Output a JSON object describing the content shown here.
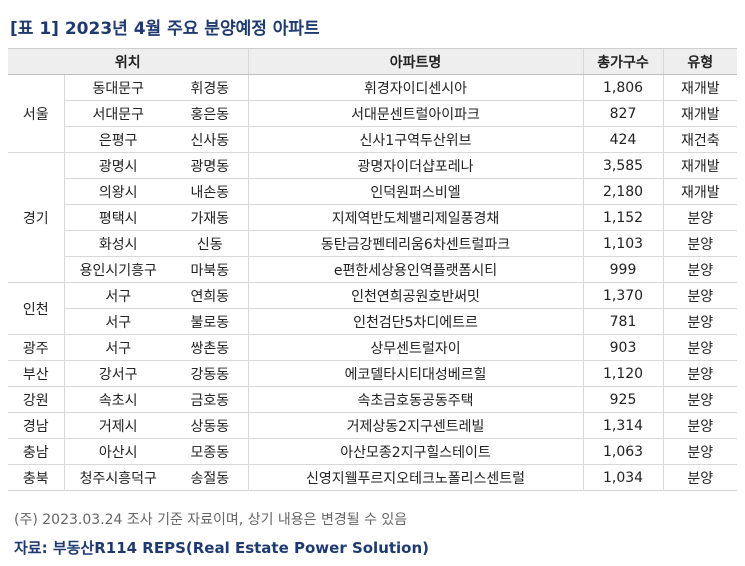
{
  "title": "[표 1] 2023년 4월 주요 분양예정 아파트",
  "headers": {
    "location": "위치",
    "apartment": "아파트명",
    "units": "총가구수",
    "type": "유형"
  },
  "groups": [
    {
      "region": "서울",
      "rows": [
        {
          "district": "동대문구",
          "dong": "휘경동",
          "name": "휘경자이디센시아",
          "units": "1,806",
          "type": "재개발"
        },
        {
          "district": "서대문구",
          "dong": "홍은동",
          "name": "서대문센트럴아이파크",
          "units": "827",
          "type": "재개발"
        },
        {
          "district": "은평구",
          "dong": "신사동",
          "name": "신사1구역두산위브",
          "units": "424",
          "type": "재건축"
        }
      ]
    },
    {
      "region": "경기",
      "rows": [
        {
          "district": "광명시",
          "dong": "광명동",
          "name": "광명자이더샵포레나",
          "units": "3,585",
          "type": "재개발"
        },
        {
          "district": "의왕시",
          "dong": "내손동",
          "name": "인덕원퍼스비엘",
          "units": "2,180",
          "type": "재개발"
        },
        {
          "district": "평택시",
          "dong": "가재동",
          "name": "지제역반도체밸리제일풍경채",
          "units": "1,152",
          "type": "분양"
        },
        {
          "district": "화성시",
          "dong": "신동",
          "name": "동탄금강펜테리움6차센트럴파크",
          "units": "1,103",
          "type": "분양"
        },
        {
          "district": "용인시기흥구",
          "dong": "마북동",
          "name": "e편한세상용인역플랫폼시티",
          "units": "999",
          "type": "분양"
        }
      ]
    },
    {
      "region": "인천",
      "rows": [
        {
          "district": "서구",
          "dong": "연희동",
          "name": "인천연희공원호반써밋",
          "units": "1,370",
          "type": "분양"
        },
        {
          "district": "서구",
          "dong": "불로동",
          "name": "인천검단5차디에트르",
          "units": "781",
          "type": "분양"
        }
      ]
    },
    {
      "region": "광주",
      "rows": [
        {
          "district": "서구",
          "dong": "쌍촌동",
          "name": "상무센트럴자이",
          "units": "903",
          "type": "분양"
        }
      ]
    },
    {
      "region": "부산",
      "rows": [
        {
          "district": "강서구",
          "dong": "강동동",
          "name": "에코델타시티대성베르힐",
          "units": "1,120",
          "type": "분양"
        }
      ]
    },
    {
      "region": "강원",
      "rows": [
        {
          "district": "속초시",
          "dong": "금호동",
          "name": "속초금호동공동주택",
          "units": "925",
          "type": "분양"
        }
      ]
    },
    {
      "region": "경남",
      "rows": [
        {
          "district": "거제시",
          "dong": "상동동",
          "name": "거제상동2지구센트레빌",
          "units": "1,314",
          "type": "분양"
        }
      ]
    },
    {
      "region": "충남",
      "rows": [
        {
          "district": "아산시",
          "dong": "모종동",
          "name": "아산모종2지구힐스테이트",
          "units": "1,063",
          "type": "분양"
        }
      ]
    },
    {
      "region": "충북",
      "rows": [
        {
          "district": "청주시흥덕구",
          "dong": "송절동",
          "name": "신영지웰푸르지오테크노폴리스센트럴",
          "units": "1,034",
          "type": "분양"
        }
      ]
    }
  ],
  "footnote": "(주) 2023.03.24 조사 기준 자료이며, 상기 내용은 변경될 수 있음",
  "source": "자료: 부동산R114 REPS(Real Estate Power Solution)"
}
